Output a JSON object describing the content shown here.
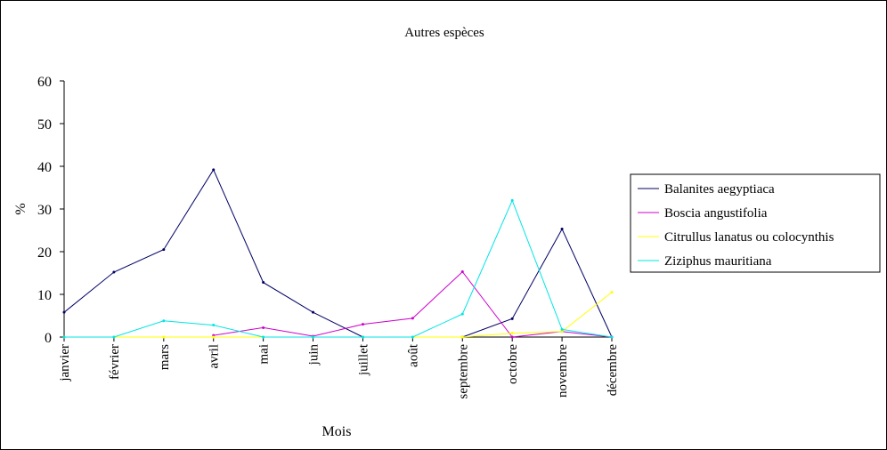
{
  "chart_data": {
    "type": "line",
    "title": "Autres espèces",
    "xlabel": "Mois",
    "ylabel": "%",
    "categories": [
      "janvier",
      "février",
      "mars",
      "avril",
      "mai",
      "juin",
      "juillet",
      "août",
      "septembre",
      "octobre",
      "novembre",
      "décembre"
    ],
    "ylim": [
      0,
      60
    ],
    "yticks": [
      0,
      10,
      20,
      30,
      40,
      50,
      60
    ],
    "grid": false,
    "legend_position": "right",
    "series": [
      {
        "name": "Balanites aegyptiaca",
        "color": "#000066",
        "values": [
          5.8,
          15.2,
          20.5,
          39.2,
          12.8,
          5.8,
          0,
          null,
          0,
          4.3,
          25.3,
          0
        ]
      },
      {
        "name": "Boscia angustifolia",
        "color": "#cc00cc",
        "values": [
          null,
          null,
          null,
          0.4,
          2.2,
          0.2,
          3.0,
          4.4,
          15.3,
          0,
          1.3,
          0
        ]
      },
      {
        "name": "Citrullus lanatus ou colocynthis",
        "color": "#ffff00",
        "values": [
          0,
          0,
          0,
          0,
          0,
          0,
          0,
          0,
          0,
          0.9,
          1.3,
          10.5
        ]
      },
      {
        "name": "Ziziphus mauritiana",
        "color": "#00e5e5",
        "values": [
          0,
          0,
          3.8,
          2.8,
          0,
          0,
          0,
          0,
          5.4,
          32.0,
          1.8,
          0
        ]
      }
    ]
  }
}
